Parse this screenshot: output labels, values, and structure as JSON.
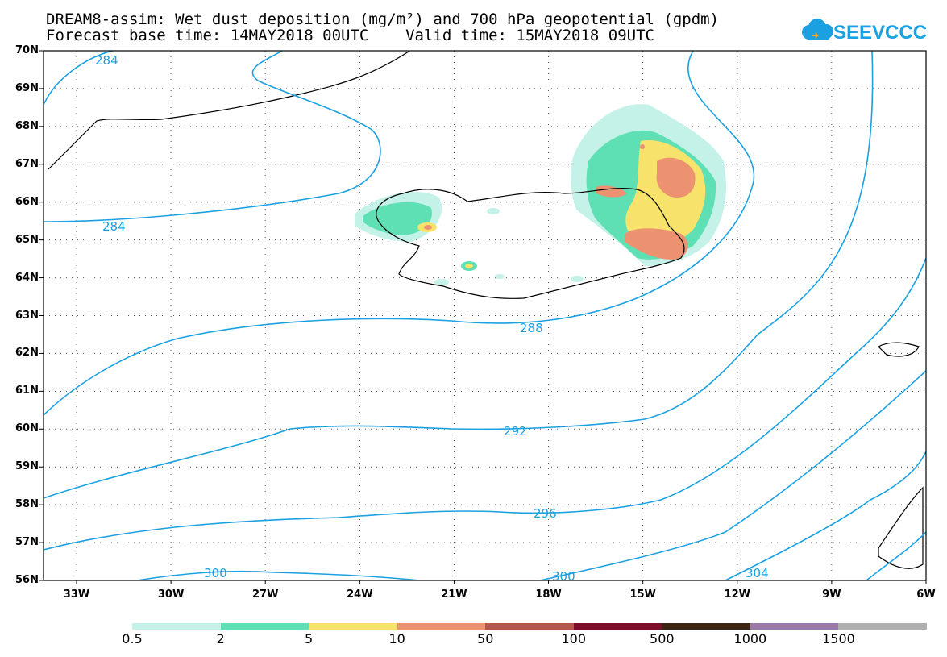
{
  "title_line1": "DREAM8-assim: Wet dust deposition (mg/m²) and 700 hPa geopotential (gpdm)",
  "title_line2": "Forecast base time: 14MAY2018 00UTC    Valid time: 15MAY2018 09UTC",
  "logo_text": "SEEVCCC",
  "latitudes": [
    "70N",
    "69N",
    "68N",
    "67N",
    "66N",
    "65N",
    "64N",
    "63N",
    "62N",
    "61N",
    "60N",
    "59N",
    "58N",
    "57N",
    "56N"
  ],
  "longitudes": [
    "33W",
    "30W",
    "27W",
    "24W",
    "21W",
    "18W",
    "15W",
    "12W",
    "9W",
    "6W"
  ],
  "contour_labels": [
    "284",
    "284",
    "288",
    "292",
    "296",
    "300",
    "300",
    "304"
  ],
  "colorbar": {
    "colors": [
      "#c4f2e8",
      "#5fe0b4",
      "#f7e36c",
      "#ec9271",
      "#b4574d",
      "#7e0d2b",
      "#3c2415",
      "#9a78a8",
      "#b0b0b0"
    ],
    "labels": [
      "0.5",
      "2",
      "5",
      "10",
      "50",
      "100",
      "500",
      "1000",
      "1500"
    ]
  },
  "accent_color": "#1ba1e2"
}
